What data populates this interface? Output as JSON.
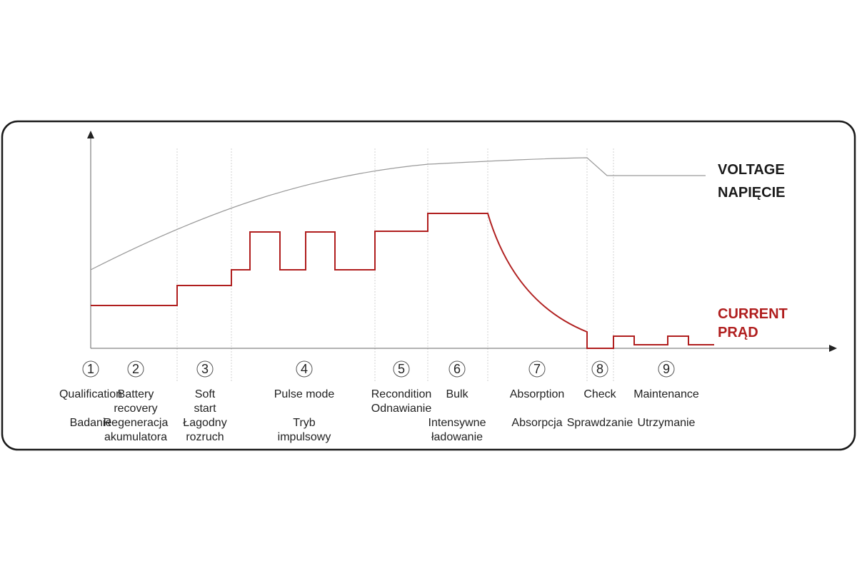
{
  "legend": {
    "voltage": [
      "VOLTAGE",
      "NAPIĘCIE"
    ],
    "current": [
      "CURRENT",
      "PRĄD"
    ]
  },
  "colors": {
    "voltage_line": "#9a9a9a",
    "current_line": "#b01e1e",
    "frame": "#1a1a1a",
    "stage_divider": "#d0d0d0"
  },
  "stages": [
    {
      "num": "1",
      "en": [
        "Qualification"
      ],
      "pl": [
        "Badanie"
      ]
    },
    {
      "num": "2",
      "en": [
        "Battery",
        "recovery"
      ],
      "pl": [
        "Regeneracja",
        "akumulatora"
      ]
    },
    {
      "num": "3",
      "en": [
        "Soft",
        "start"
      ],
      "pl": [
        "Łagodny",
        "rozruch"
      ]
    },
    {
      "num": "4",
      "en": [
        "Pulse mode"
      ],
      "pl": [
        "Tryb",
        "impulsowy"
      ]
    },
    {
      "num": "5",
      "en": [
        "Recondition"
      ],
      "pl": [
        "Odnawianie"
      ]
    },
    {
      "num": "6",
      "en": [
        "Bulk"
      ],
      "pl": [
        "Intensywne",
        "ładowanie"
      ]
    },
    {
      "num": "7",
      "en": [
        "Absorption"
      ],
      "pl": [
        "Absorpcja"
      ]
    },
    {
      "num": "8",
      "en": [
        "Check"
      ],
      "pl": [
        "Sprawdzanie"
      ]
    },
    {
      "num": "9",
      "en": [
        "Maintenance"
      ],
      "pl": [
        "Utrzymanie"
      ]
    }
  ]
}
